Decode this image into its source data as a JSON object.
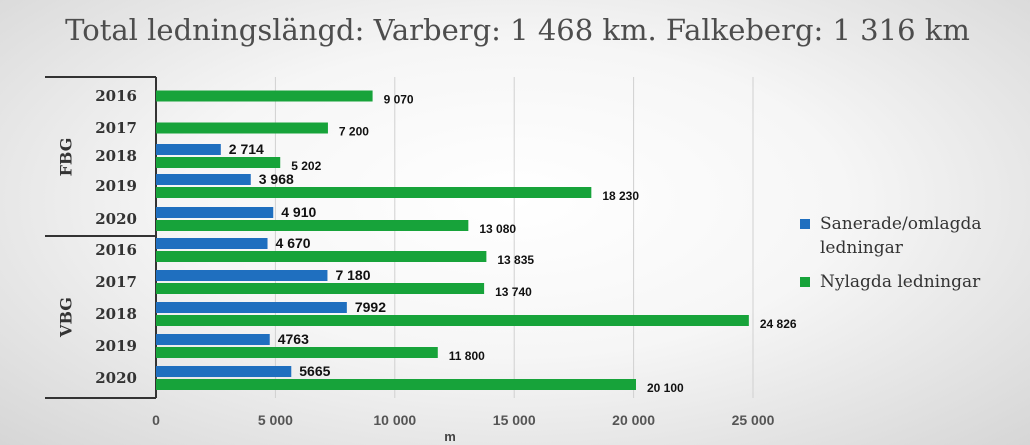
{
  "chart_data": {
    "type": "bar",
    "orientation": "horizontal",
    "title": "Total ledningslängd: Varberg: 1 468 km. Falkeberg: 1 316 km",
    "xlabel": "m",
    "ylabel": "",
    "xlim": [
      0,
      25000
    ],
    "x_ticks": [
      0,
      5000,
      10000,
      15000,
      20000,
      25000
    ],
    "x_tick_labels": [
      "0",
      "5 000",
      "10 000",
      "15 000",
      "20 000",
      "25 000"
    ],
    "grid": "vertical",
    "legend_position": "right",
    "groups": [
      {
        "name": "FBG",
        "categories": [
          "2016",
          "2017",
          "2018",
          "2019",
          "2020"
        ]
      },
      {
        "name": "VBG",
        "categories": [
          "2016",
          "2017",
          "2018",
          "2019",
          "2020"
        ]
      }
    ],
    "series": [
      {
        "name": "Sanerade/omlagda ledningar",
        "color": "#1f6fbf",
        "values": [
          null,
          null,
          2714,
          3968,
          4910,
          4670,
          7180,
          7992,
          4763,
          5665
        ],
        "labels": [
          "",
          "",
          "2 714",
          "3 968",
          "4 910",
          "4 670",
          "7 180",
          "7992",
          "4763",
          "5665"
        ]
      },
      {
        "name": "Nylagda ledningar",
        "color": "#17a33a",
        "values": [
          9070,
          7200,
          5202,
          18230,
          13080,
          13835,
          13740,
          24826,
          11800,
          20100
        ],
        "labels": [
          "9 070",
          "7 200",
          "5 202",
          "18 230",
          "13 080",
          "13 835",
          "13 740",
          "24 826",
          "11 800",
          "20 100"
        ]
      }
    ]
  },
  "legend": {
    "items": [
      {
        "label": "Sanerade/omlagda ledningar",
        "color": "#1f6fbf"
      },
      {
        "label": "Nylagda ledningar",
        "color": "#17a33a"
      }
    ]
  }
}
